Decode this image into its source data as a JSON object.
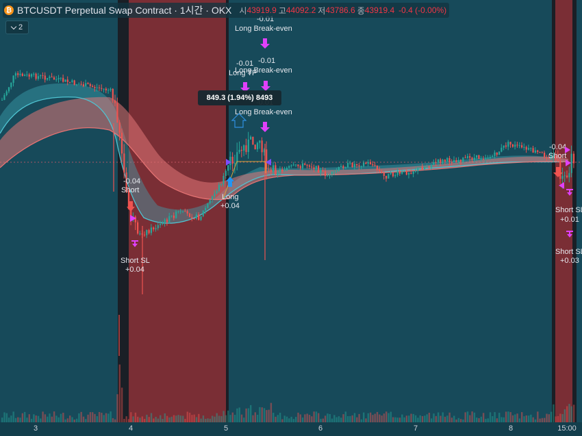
{
  "header": {
    "title": "BTCUSDT Perpetual Swap Contract · 1시간 · OKX",
    "open_label": "시",
    "open": "43919.9",
    "high_label": "고",
    "high": "44092.2",
    "low_label": "저",
    "low": "43786.6",
    "close_label": "종",
    "close": "43919.4",
    "change": "-0.4 (-0.00%)"
  },
  "indicator_toggle": {
    "count": "2"
  },
  "tooltip": {
    "text": "849.3 (1.94%) 8493"
  },
  "colors": {
    "background": "#174a5a",
    "session_shade": "#7a2e35",
    "up_candle": "#26a69a",
    "down_candle": "#ef5350",
    "fast_ma": "#4fc3d1",
    "slow_ma": "#e57373",
    "signal_marker": "#e040fb"
  },
  "signals": [
    {
      "text": "-0.04"
    },
    {
      "text": "Short"
    },
    {
      "text": "Short SL"
    },
    {
      "text": "+0.04"
    },
    {
      "text": "Long"
    },
    {
      "text": "+0.04"
    },
    {
      "text": "-0.01"
    },
    {
      "text": "Long Break-even"
    },
    {
      "text": "-0.01"
    },
    {
      "text": "Long TP"
    },
    {
      "text": "-0.01"
    },
    {
      "text": "Long Break-even"
    },
    {
      "text": "-0.01"
    },
    {
      "text": "Long Break-even"
    },
    {
      "text": "-0.04"
    },
    {
      "text": "Short"
    },
    {
      "text": "Short SL"
    },
    {
      "text": "+0.01"
    },
    {
      "text": "Short SL"
    },
    {
      "text": "+0.03"
    }
  ],
  "chart_data": {
    "type": "candlestick",
    "x_axis_ticks": [
      "3",
      "4",
      "5",
      "6",
      "7",
      "8",
      "15:00"
    ],
    "series": [
      {
        "name": "",
        "kind": "candles"
      },
      {
        "name": "",
        "kind": "fast moving average band"
      },
      {
        "name": "",
        "kind": "slow moving average band"
      },
      {
        "name": "",
        "kind": "volume"
      }
    ]
  }
}
